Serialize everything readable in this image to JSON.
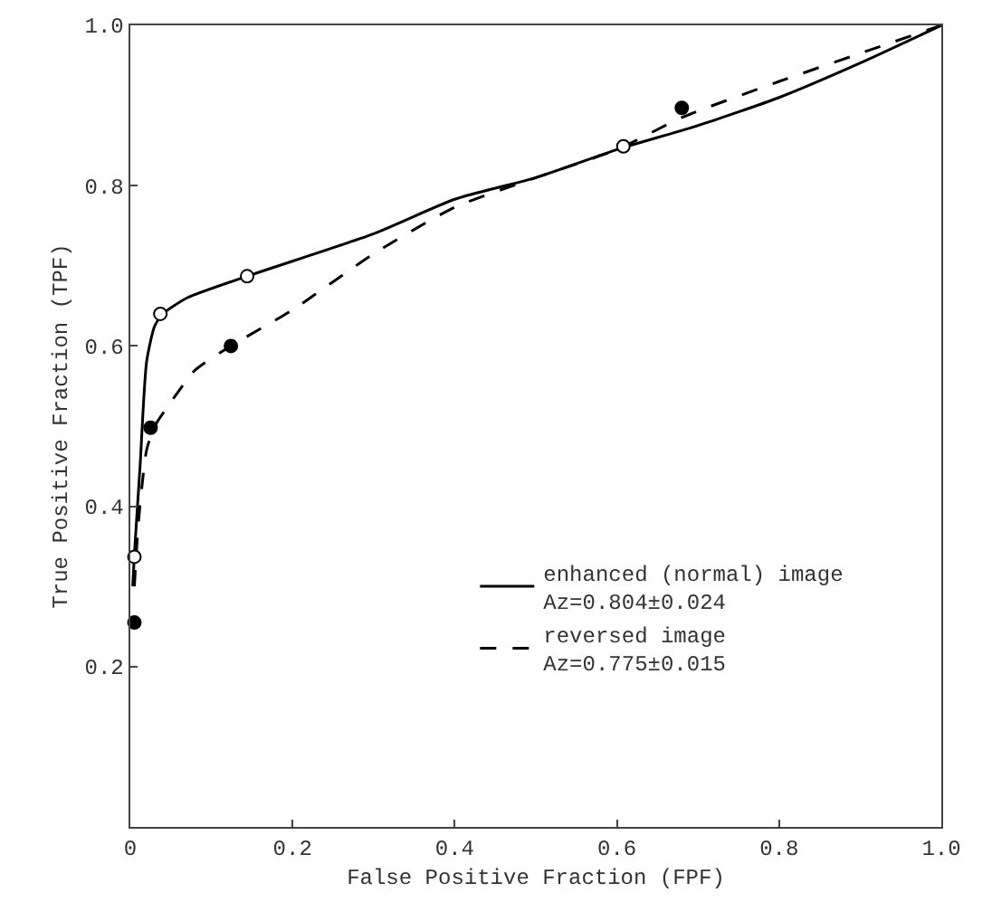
{
  "chart_data": {
    "type": "line",
    "xlabel": "False Positive Fraction (FPF)",
    "ylabel": "True Positive Fraction (TPF)",
    "xlim": [
      0,
      1
    ],
    "ylim": [
      0,
      1
    ],
    "xticks": [
      0,
      {
        "value": 0.2,
        "label": "0.2"
      },
      {
        "value": 0.4,
        "label": "0.4"
      },
      {
        "value": 0.6,
        "label": "0.6"
      },
      {
        "value": 0.8,
        "label": "0.8"
      },
      {
        "value": 1,
        "label": "1.0"
      }
    ],
    "yticks": [
      {
        "value": 0.2,
        "label": "0.2"
      },
      {
        "value": 0.4,
        "label": "0.4"
      },
      {
        "value": 0.6,
        "label": "0.6"
      },
      {
        "value": 0.8,
        "label": "0.8"
      },
      {
        "value": 1,
        "label": "1.0"
      }
    ],
    "grid": false,
    "legend": "bottom right",
    "series": [
      {
        "type": "line",
        "name": "enhanced (normal) image\nAz=0.804±0.024",
        "color": "#000000",
        "line_style": "solid",
        "marker": "none",
        "x": [
          0.003,
          0.005,
          0.012,
          0.02,
          0.03,
          0.04,
          0.07,
          0.144,
          0.3,
          0.4,
          0.5,
          0.6,
          0.7,
          0.8,
          0.9,
          1
        ],
        "values": [
          0.3,
          0.34,
          0.45,
          0.58,
          0.625,
          0.64,
          0.66,
          0.687,
          0.74,
          0.783,
          0.81,
          0.845,
          0.875,
          0.91,
          0.953,
          1
        ]
      },
      {
        "type": "line",
        "name": "reversed image\nAz=0.775±0.015",
        "color": "#000000",
        "line_style": "dashed",
        "marker": "none",
        "x": [
          0.005,
          0.01,
          0.02,
          0.03,
          0.05,
          0.08,
          0.124,
          0.2,
          0.3,
          0.4,
          0.5,
          0.6,
          0.68,
          0.8,
          0.9,
          1
        ],
        "values": [
          0.3,
          0.38,
          0.47,
          0.5,
          0.53,
          0.57,
          0.6,
          0.645,
          0.715,
          0.773,
          0.81,
          0.845,
          0.885,
          0.93,
          0.965,
          1
        ]
      },
      {
        "type": "scatter",
        "color": "#ffffff",
        "marker": "circle",
        "x": [
          0.005,
          0.037,
          0.144,
          0.608
        ],
        "values": [
          0.337,
          0.64,
          0.687,
          0.849
        ]
      },
      {
        "type": "scatter",
        "color": "#000000",
        "marker": "circle",
        "x": [
          0.005,
          0.025,
          0.124,
          0.68
        ],
        "values": [
          0.255,
          0.498,
          0.6,
          0.897
        ]
      }
    ]
  }
}
